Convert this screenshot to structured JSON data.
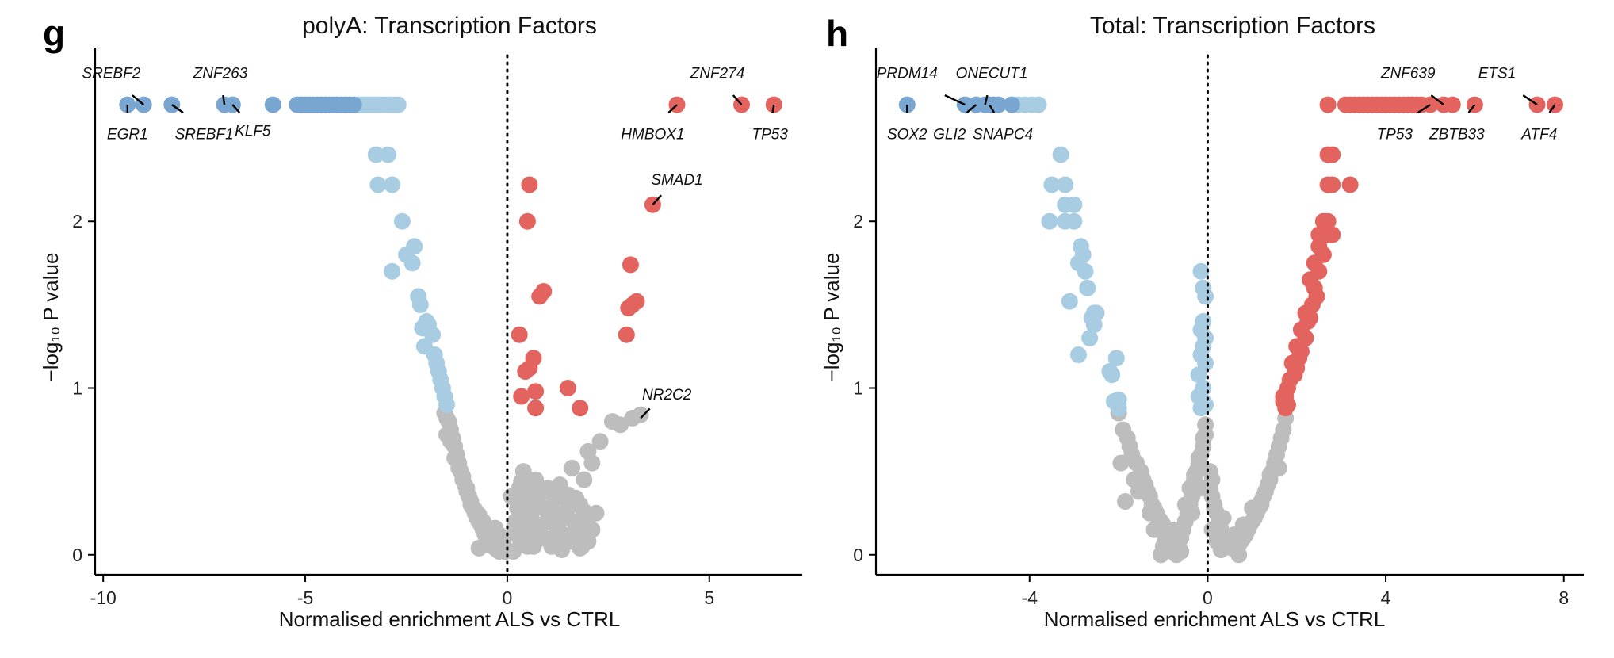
{
  "colors": {
    "up": "#E3645E",
    "down_strong": "#78A6D0",
    "down": "#A8CDE3",
    "ns": "#BDBDBD"
  },
  "chart_data": [
    {
      "panel": "g",
      "type": "scatter",
      "title": "polyA: Transcription Factors",
      "xlabel": "Normalised enrichment ALS vs CTRL",
      "ylabel": "−log₁₀ P value",
      "xlim": [
        -10.2,
        7.3
      ],
      "ylim": [
        -0.12,
        2.9
      ],
      "xticks": [
        -10,
        -5,
        0,
        5
      ],
      "xtick_labels": [
        "-10",
        "-5",
        "0",
        "5"
      ],
      "yticks": [
        0,
        1,
        2
      ],
      "ytick_labels": [
        "0",
        "1",
        "2"
      ],
      "vline": 0,
      "labels": [
        {
          "gene": "SREBF2",
          "x": -9.0,
          "y": 2.7,
          "lx": -9.8,
          "ly": 2.86
        },
        {
          "gene": "EGR1",
          "x": -9.4,
          "y": 2.7,
          "lx": -9.4,
          "ly": 2.56
        },
        {
          "gene": "ZNF263",
          "x": -7.0,
          "y": 2.7,
          "lx": -7.1,
          "ly": 2.86
        },
        {
          "gene": "SREBF1",
          "x": -8.3,
          "y": 2.7,
          "lx": -7.5,
          "ly": 2.56
        },
        {
          "gene": "KLF5",
          "x": -6.8,
          "y": 2.7,
          "lx": -6.3,
          "ly": 2.58
        },
        {
          "gene": "ZNF274",
          "x": 5.8,
          "y": 2.7,
          "lx": 5.2,
          "ly": 2.86
        },
        {
          "gene": "HMBOX1",
          "x": 4.2,
          "y": 2.7,
          "lx": 3.6,
          "ly": 2.56
        },
        {
          "gene": "TP53",
          "x": 6.6,
          "y": 2.7,
          "lx": 6.5,
          "ly": 2.56
        },
        {
          "gene": "SMAD1",
          "x": 3.6,
          "y": 2.1,
          "lx": 4.2,
          "ly": 2.22
        },
        {
          "gene": "NR2C2",
          "x": 3.3,
          "y": 0.82,
          "lx": 3.95,
          "ly": 0.93
        }
      ],
      "points": [
        {
          "group": "down_strong",
          "x": [
            -9.4,
            -9.0,
            -8.3,
            -7.0,
            -6.8,
            -5.8,
            -5.2,
            -5.1,
            -5.0,
            -4.9,
            -4.8,
            -4.7,
            -4.6,
            -4.5,
            -4.4,
            -4.3,
            -4.2,
            -4.1,
            -4.0,
            -3.9,
            -3.8
          ],
          "y": [
            2.7,
            2.7,
            2.7,
            2.7,
            2.7,
            2.7,
            2.7,
            2.7,
            2.7,
            2.7,
            2.7,
            2.7,
            2.7,
            2.7,
            2.7,
            2.7,
            2.7,
            2.7,
            2.7,
            2.7,
            2.7
          ]
        },
        {
          "group": "down",
          "x": [
            -3.7,
            -3.6,
            -3.5,
            -3.4,
            -3.3,
            -3.2,
            -3.1,
            -3.0,
            -2.9,
            -2.8,
            -2.7,
            -3.25,
            -2.95,
            -3.2,
            -2.85,
            -2.6,
            -2.3,
            -2.5,
            -2.35,
            -2.85,
            -2.2,
            -2.15,
            -2.0,
            -1.95,
            -2.1,
            -1.85,
            -2.05,
            -1.8,
            -1.75,
            -1.7,
            -1.65,
            -1.6,
            -1.55,
            -1.5
          ],
          "y": [
            2.7,
            2.7,
            2.7,
            2.7,
            2.7,
            2.7,
            2.7,
            2.7,
            2.7,
            2.7,
            2.7,
            2.4,
            2.4,
            2.22,
            2.22,
            2.0,
            1.85,
            1.8,
            1.75,
            1.7,
            1.55,
            1.5,
            1.4,
            1.38,
            1.36,
            1.32,
            1.25,
            1.2,
            1.15,
            1.1,
            1.05,
            1.0,
            0.95,
            0.9
          ]
        },
        {
          "group": "up",
          "x": [
            4.2,
            5.8,
            6.6,
            0.55,
            0.5,
            3.6,
            3.05,
            0.9,
            0.8,
            3.2,
            3.1,
            3.0,
            2.95,
            0.3,
            0.65,
            0.55,
            0.45,
            1.5,
            0.35,
            0.7,
            1.8,
            0.7
          ],
          "y": [
            2.7,
            2.7,
            2.7,
            2.22,
            2.0,
            2.1,
            1.74,
            1.58,
            1.55,
            1.52,
            1.5,
            1.48,
            1.32,
            1.32,
            1.18,
            1.12,
            1.1,
            1.0,
            0.95,
            0.98,
            0.88,
            0.88
          ]
        },
        {
          "group": "ns",
          "x": [
            -1.55,
            -1.5,
            -1.45,
            -1.4,
            -1.35,
            -1.3,
            -1.25,
            -1.2,
            -1.15,
            -1.1,
            -1.05,
            -1.0,
            -0.95,
            -0.9,
            -0.85,
            -0.8,
            -0.75,
            -0.7,
            -0.65,
            -0.6,
            -0.55,
            -0.5,
            -0.45,
            -0.4,
            -0.35,
            -0.3,
            -0.25,
            -0.2,
            -0.15,
            -0.1,
            -0.05,
            -1.5,
            -1.4,
            -1.3,
            -1.2,
            -1.1,
            -1.0,
            -0.9,
            -0.8,
            -0.7,
            -0.6,
            -0.5,
            -0.4,
            -0.3,
            -0.2,
            -0.1,
            0.1,
            0.2,
            0.3,
            0.4,
            0.5,
            0.6,
            0.7,
            0.8,
            0.9,
            1.0,
            1.1,
            1.2,
            1.3,
            1.4,
            1.5,
            1.6,
            1.7,
            1.8,
            1.9,
            2.0,
            2.1,
            2.2,
            0.15,
            0.25,
            0.35,
            0.45,
            0.55,
            0.65,
            0.75,
            0.85,
            0.95,
            1.05,
            1.15,
            1.25,
            1.35,
            1.45,
            1.55,
            1.65,
            1.75,
            1.85,
            1.95,
            0.2,
            0.4,
            0.6,
            0.8,
            1.0,
            1.2,
            1.4,
            1.6,
            1.8,
            2.0,
            0.3,
            0.5,
            0.7,
            0.9,
            1.1,
            1.3,
            1.5,
            1.7,
            1.9,
            0.35,
            1.6,
            1.9,
            2.0,
            2.1,
            2.3,
            2.6,
            2.8,
            3.1,
            3.3,
            0.4,
            0.7,
            1.0,
            1.3,
            1.7,
            -0.3,
            -0.5,
            -0.2,
            -0.7,
            -0.1
          ],
          "y": [
            0.85,
            0.82,
            0.8,
            0.75,
            0.7,
            0.65,
            0.6,
            0.55,
            0.5,
            0.45,
            0.42,
            0.38,
            0.35,
            0.32,
            0.28,
            0.25,
            0.22,
            0.2,
            0.18,
            0.15,
            0.12,
            0.1,
            0.08,
            0.06,
            0.05,
            0.04,
            0.03,
            0.02,
            0.05,
            0.03,
            0.02,
            0.72,
            0.68,
            0.58,
            0.52,
            0.47,
            0.4,
            0.3,
            0.27,
            0.24,
            0.2,
            0.16,
            0.1,
            0.07,
            0.04,
            0.06,
            0.35,
            0.2,
            0.1,
            0.3,
            0.05,
            0.25,
            0.15,
            0.3,
            0.1,
            0.2,
            0.05,
            0.25,
            0.35,
            0.12,
            0.28,
            0.08,
            0.18,
            0.3,
            0.1,
            0.22,
            0.15,
            0.25,
            0.02,
            0.28,
            0.12,
            0.38,
            0.22,
            0.05,
            0.32,
            0.18,
            0.27,
            0.08,
            0.36,
            0.15,
            0.03,
            0.25,
            0.1,
            0.2,
            0.3,
            0.05,
            0.14,
            0.15,
            0.18,
            0.36,
            0.1,
            0.28,
            0.34,
            0.22,
            0.3,
            0.04,
            0.08,
            0.4,
            0.08,
            0.32,
            0.38,
            0.1,
            0.2,
            0.36,
            0.12,
            0.26,
            0.44,
            0.52,
            0.45,
            0.62,
            0.55,
            0.68,
            0.8,
            0.78,
            0.82,
            0.84,
            0.5,
            0.45,
            0.4,
            0.42,
            0.34,
            0.16,
            0.06,
            0.12,
            0.04,
            0.1
          ]
        }
      ]
    },
    {
      "panel": "h",
      "type": "scatter",
      "title": "Total: Transcription Factors",
      "xlabel": "Normalised enrichment ALS vs CTRL",
      "ylabel": "−log₁₀ P value",
      "xlim": [
        -7.45,
        8.45
      ],
      "ylim": [
        -0.12,
        2.9
      ],
      "xticks": [
        -4,
        0,
        4,
        8
      ],
      "xtick_labels": [
        "-4",
        "0",
        "4",
        "8"
      ],
      "yticks": [
        0,
        1,
        2
      ],
      "ytick_labels": [
        "0",
        "1",
        "2"
      ],
      "vline": 0,
      "labels": [
        {
          "gene": "PRDM14",
          "x": -5.45,
          "y": 2.7,
          "lx": -6.75,
          "ly": 2.86
        },
        {
          "gene": "SOX2",
          "x": -6.75,
          "y": 2.7,
          "lx": -6.75,
          "ly": 2.56
        },
        {
          "gene": "ONECUT1",
          "x": -5.0,
          "y": 2.7,
          "lx": -4.85,
          "ly": 2.86
        },
        {
          "gene": "GLI2",
          "x": -5.2,
          "y": 2.7,
          "lx": -5.8,
          "ly": 2.56
        },
        {
          "gene": "SNAPC4",
          "x": -4.9,
          "y": 2.7,
          "lx": -4.6,
          "ly": 2.56
        },
        {
          "gene": "ZNF639",
          "x": 5.3,
          "y": 2.7,
          "lx": 4.5,
          "ly": 2.86
        },
        {
          "gene": "TP53",
          "x": 5.0,
          "y": 2.7,
          "lx": 4.2,
          "ly": 2.56
        },
        {
          "gene": "ETS1",
          "x": 7.4,
          "y": 2.7,
          "lx": 6.5,
          "ly": 2.86
        },
        {
          "gene": "ZBTB33",
          "x": 6.0,
          "y": 2.7,
          "lx": 5.6,
          "ly": 2.56
        },
        {
          "gene": "ATF4",
          "x": 7.8,
          "y": 2.7,
          "lx": 7.45,
          "ly": 2.56
        }
      ],
      "points": [
        {
          "group": "down_strong",
          "x": [
            -6.75,
            -5.45,
            -5.2,
            -5.0,
            -4.9,
            -4.8,
            -4.7,
            -4.4
          ],
          "y": [
            2.7,
            2.7,
            2.7,
            2.7,
            2.7,
            2.7,
            2.7,
            2.7
          ]
        },
        {
          "group": "down",
          "x": [
            -4.25,
            -4.1,
            -3.95,
            -3.8,
            -3.3,
            -3.5,
            -3.2,
            -3.2,
            -3.0,
            -3.2,
            -3.0,
            -3.55,
            -2.85,
            -2.8,
            -2.75,
            -2.9,
            -2.7,
            -2.55,
            -2.6,
            -2.5,
            -2.55,
            -2.65,
            -3.1,
            -2.9,
            -2.05,
            -2.2,
            -2.15,
            -2.0,
            -2.1,
            -2.0,
            -0.15,
            -0.1,
            -0.05,
            -0.1,
            -0.15,
            -0.05,
            -0.1,
            -0.15,
            -0.05,
            -0.2,
            -0.1,
            -0.2,
            -0.15,
            -0.1,
            -0.05
          ],
          "y": [
            2.7,
            2.7,
            2.7,
            2.7,
            2.4,
            2.22,
            2.22,
            2.1,
            2.1,
            2.0,
            2.0,
            2.0,
            1.85,
            1.8,
            1.7,
            1.75,
            1.6,
            1.45,
            1.42,
            1.45,
            1.38,
            1.3,
            1.52,
            1.2,
            1.18,
            1.1,
            1.08,
            0.93,
            0.92,
            0.88,
            1.7,
            1.6,
            1.55,
            1.4,
            1.35,
            1.3,
            1.25,
            1.2,
            1.15,
            1.08,
            1.0,
            0.95,
            0.88,
            0.92,
            0.9
          ]
        },
        {
          "group": "up",
          "x": [
            2.7,
            3.1,
            3.2,
            3.3,
            3.4,
            3.5,
            3.6,
            3.7,
            3.8,
            3.9,
            4.0,
            4.1,
            4.2,
            4.3,
            4.4,
            4.5,
            4.6,
            4.7,
            4.8,
            5.0,
            5.3,
            5.5,
            6.0,
            7.4,
            7.8,
            2.7,
            2.8,
            2.7,
            2.8,
            3.2,
            2.6,
            2.7,
            2.5,
            2.6,
            2.7,
            2.8,
            2.5,
            2.6,
            2.4,
            2.5,
            2.3,
            2.4,
            2.45,
            2.35,
            2.2,
            2.25,
            2.3,
            2.1,
            2.2,
            2.0,
            2.1,
            2.05,
            1.9,
            2.0,
            1.95,
            1.85,
            1.8,
            1.75,
            1.7,
            1.8,
            1.7,
            1.75
          ],
          "y": [
            2.7,
            2.7,
            2.7,
            2.7,
            2.7,
            2.7,
            2.7,
            2.7,
            2.7,
            2.7,
            2.7,
            2.7,
            2.7,
            2.7,
            2.7,
            2.7,
            2.7,
            2.7,
            2.7,
            2.7,
            2.7,
            2.7,
            2.7,
            2.7,
            2.7,
            2.4,
            2.4,
            2.22,
            2.22,
            2.22,
            2.0,
            2.0,
            1.92,
            1.92,
            1.92,
            1.92,
            1.85,
            1.8,
            1.75,
            1.7,
            1.65,
            1.6,
            1.55,
            1.5,
            1.45,
            1.4,
            1.42,
            1.35,
            1.3,
            1.25,
            1.22,
            1.18,
            1.15,
            1.12,
            1.08,
            1.05,
            1.0,
            0.95,
            0.92,
            0.9,
            0.95,
            0.88
          ]
        },
        {
          "group": "ns",
          "x": [
            -1.9,
            -1.8,
            -1.75,
            -1.7,
            -1.6,
            -1.5,
            -1.45,
            -1.4,
            -1.35,
            -1.3,
            -1.25,
            -1.2,
            -1.15,
            -1.1,
            -1.05,
            -1.0,
            -0.95,
            -0.9,
            -0.85,
            -0.8,
            -0.75,
            -0.7,
            -0.65,
            -0.6,
            -0.55,
            -0.5,
            -0.45,
            -0.4,
            -0.35,
            -0.3,
            -0.25,
            -0.2,
            -0.15,
            -0.1,
            -0.05,
            -2.0,
            -1.95,
            -1.85,
            -1.65,
            -1.55,
            -1.3,
            -1.0,
            -1.2,
            -0.8,
            -0.6,
            -0.4,
            -0.3,
            -0.2,
            -0.1,
            -0.05,
            1.7,
            1.65,
            1.6,
            1.55,
            1.5,
            1.45,
            1.4,
            1.35,
            1.3,
            1.25,
            1.2,
            1.15,
            1.1,
            1.05,
            1.0,
            0.95,
            0.9,
            0.85,
            0.8,
            0.75,
            0.7,
            0.65,
            0.6,
            0.55,
            0.5,
            0.45,
            0.4,
            0.35,
            0.3,
            0.25,
            0.2,
            0.15,
            0.1,
            0.05,
            1.75,
            1.6,
            1.4,
            1.2,
            1.0,
            0.8,
            0.6,
            0.5,
            0.4,
            0.3,
            0.2,
            0.1,
            0.05,
            -1.05,
            -0.7,
            -0.5,
            -0.35,
            -0.15,
            0.1,
            0.15,
            0.35,
            0.7,
            -0.95,
            -0.75
          ],
          "y": [
            0.75,
            0.7,
            0.65,
            0.6,
            0.55,
            0.5,
            0.45,
            0.42,
            0.38,
            0.35,
            0.3,
            0.28,
            0.25,
            0.22,
            0.2,
            0.18,
            0.15,
            0.12,
            0.1,
            0.08,
            0.06,
            0.05,
            0.08,
            0.1,
            0.15,
            0.2,
            0.25,
            0.3,
            0.35,
            0.45,
            0.5,
            0.55,
            0.6,
            0.7,
            0.78,
            0.85,
            0.55,
            0.32,
            0.45,
            0.38,
            0.25,
            0.05,
            0.15,
            0.02,
            0.02,
            0.4,
            0.48,
            0.58,
            0.65,
            0.72,
            0.75,
            0.7,
            0.65,
            0.6,
            0.55,
            0.5,
            0.45,
            0.42,
            0.38,
            0.35,
            0.3,
            0.28,
            0.25,
            0.22,
            0.2,
            0.18,
            0.15,
            0.12,
            0.1,
            0.08,
            0.06,
            0.05,
            0.04,
            0.04,
            0.05,
            0.08,
            0.1,
            0.12,
            0.15,
            0.2,
            0.25,
            0.3,
            0.35,
            0.4,
            0.82,
            0.52,
            0.48,
            0.32,
            0.28,
            0.18,
            0.12,
            0.1,
            0.06,
            0.03,
            0.08,
            0.15,
            0.5,
            0.0,
            0.0,
            0.3,
            0.25,
            0.4,
            0.45,
            0.28,
            0.22,
            0.0,
            0.1,
            0.15
          ]
        }
      ]
    }
  ]
}
